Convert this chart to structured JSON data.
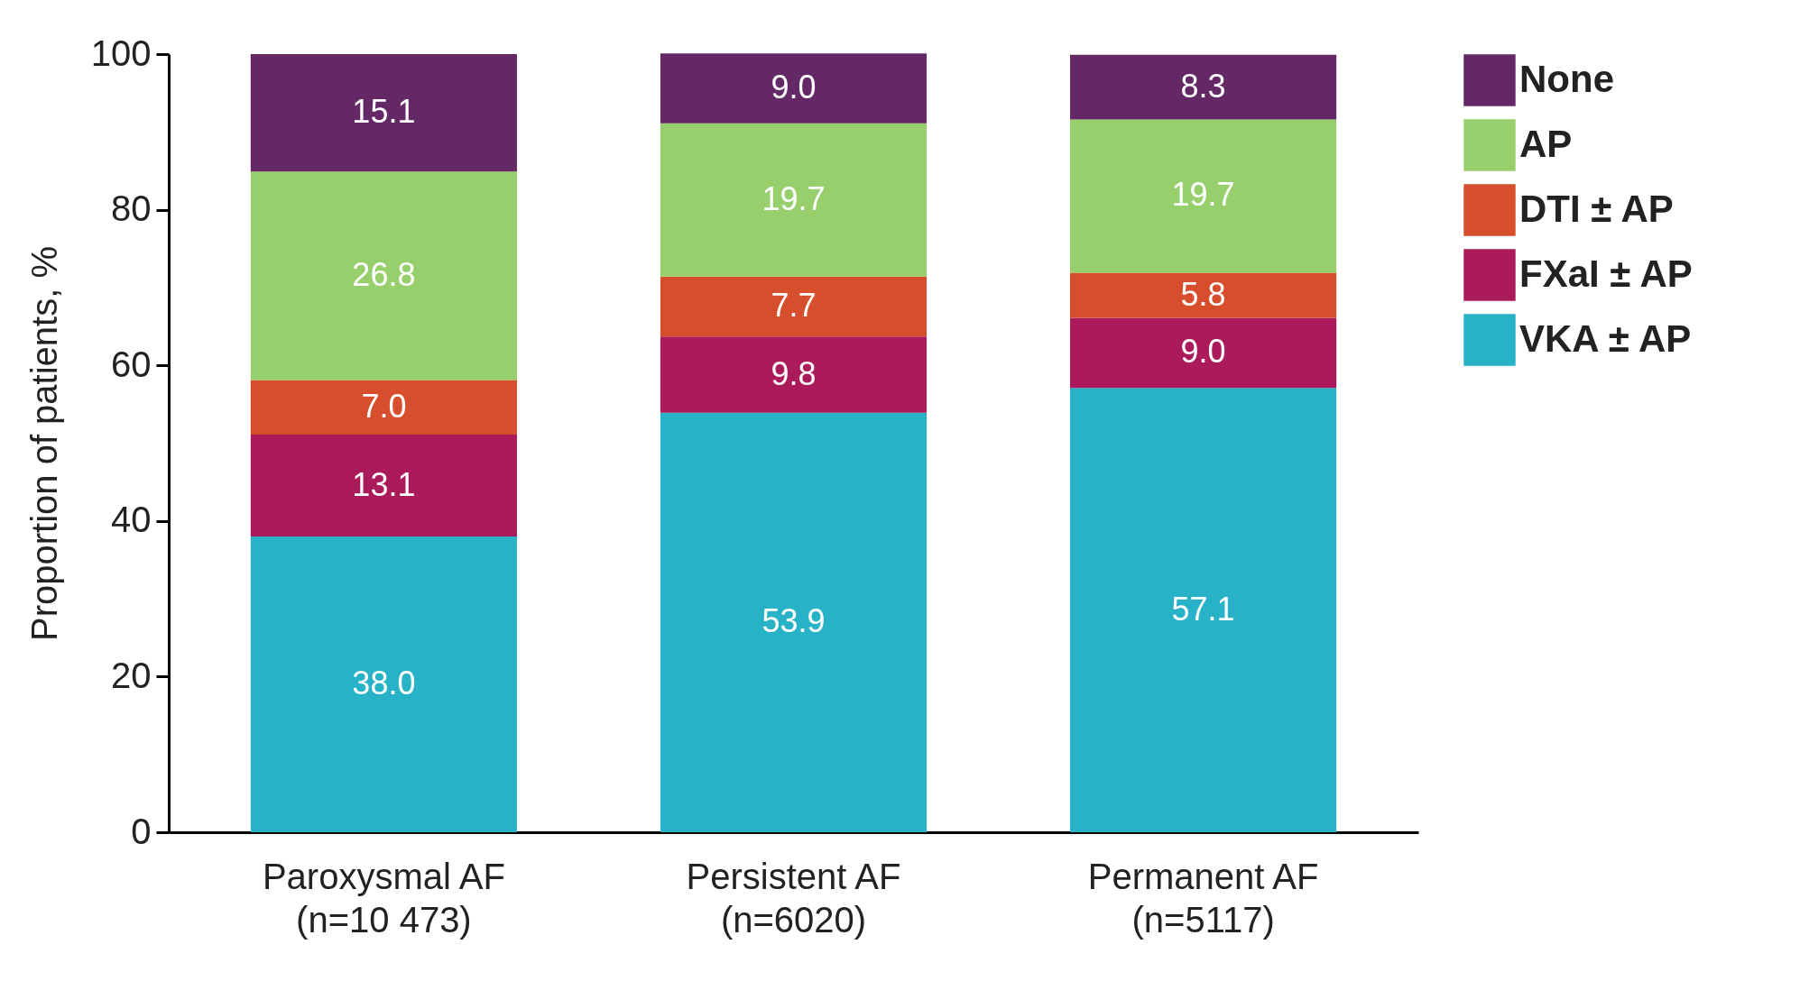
{
  "chart_data": {
    "type": "bar",
    "stacked": true,
    "ylabel": "Proportion of patients, %",
    "categories": [
      "Paroxysmal AF\n(n=10 473)",
      "Persistent AF\n(n=6020)",
      "Permanent AF\n(n=5117)"
    ],
    "series": [
      {
        "name": "VKA ± AP",
        "color": "#27b2c8",
        "values": [
          38.0,
          53.9,
          57.1
        ],
        "value_labels": [
          "38.0",
          "53.9",
          "57.1"
        ]
      },
      {
        "name": "FXaI ± AP",
        "color": "#ab1a5a",
        "values": [
          13.1,
          9.8,
          9.0
        ],
        "value_labels": [
          "13.1",
          "9.8",
          "9.0"
        ]
      },
      {
        "name": "DTI ± AP",
        "color": "#d64e2b",
        "values": [
          7.0,
          7.7,
          5.8
        ],
        "value_labels": [
          "7.0",
          "7.7",
          "5.8"
        ]
      },
      {
        "name": "AP",
        "color": "#97cf6d",
        "values": [
          26.8,
          19.7,
          19.7
        ],
        "value_labels": [
          "26.8",
          "19.7",
          "19.7"
        ]
      },
      {
        "name": "None",
        "color": "#642866",
        "values": [
          15.1,
          9.0,
          8.3
        ],
        "value_labels": [
          "15.1",
          "9.0",
          "8.3"
        ]
      }
    ],
    "ylim": [
      0,
      100
    ],
    "yticks": [
      0,
      20,
      40,
      60,
      80,
      100
    ],
    "legend": "top right"
  }
}
